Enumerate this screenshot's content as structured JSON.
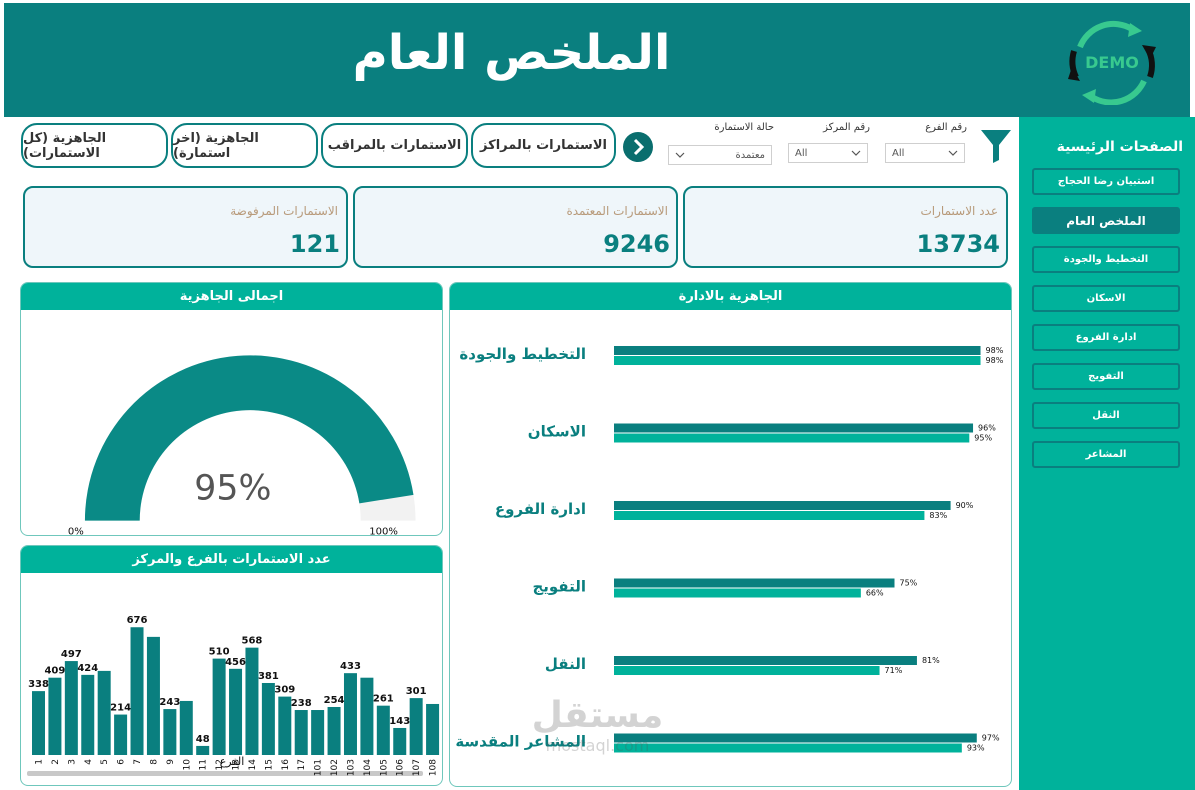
{
  "header": {
    "title": "الملخص العام",
    "logo_text": "DEMO"
  },
  "sidebar": {
    "title": "الصفحات الرئيسية",
    "items": [
      {
        "label": "استبيان رضا الحجاج",
        "active": false
      },
      {
        "label": "الملخص العام",
        "active": true
      },
      {
        "label": "التخطيط والجودة",
        "active": false
      },
      {
        "label": "الاسكان",
        "active": false
      },
      {
        "label": "ادارة الفروع",
        "active": false
      },
      {
        "label": "التفويج",
        "active": false
      },
      {
        "label": "النقل",
        "active": false
      },
      {
        "label": "المشاعر",
        "active": false
      }
    ]
  },
  "filters": {
    "branch": {
      "label": "رقم الفرع",
      "value": "All"
    },
    "center": {
      "label": "رقم المركز",
      "value": "All"
    },
    "status": {
      "label": "حالة الاستمارة",
      "value": "معتمدة"
    }
  },
  "nav_pills": [
    "الاستمارات بالمراكز",
    "الاستمارات بالمراقب",
    "الجاهزية (اخر استمارة)",
    "الجاهزية (كل الاستمارات)"
  ],
  "kpis": [
    {
      "label": "عدد الاستمارات",
      "value": "13734"
    },
    {
      "label": "الاستمارات المعتمدة",
      "value": "9246"
    },
    {
      "label": "الاستمارات المرفوضة",
      "value": "121"
    }
  ],
  "gauge": {
    "title": "اجمالى الجاهزية",
    "value_label": "95%",
    "value": 0.95,
    "min_label": "0%",
    "max_label": "100%"
  },
  "dept_readiness": {
    "title": "الجاهزية بالادارة",
    "rows": [
      {
        "name": "التخطيط والجودة",
        "a": 98,
        "b": 98,
        "a_label": "98%",
        "b_label": "98%"
      },
      {
        "name": "الاسكان",
        "a": 96,
        "b": 95,
        "a_label": "96%",
        "b_label": "95%"
      },
      {
        "name": "ادارة الفروع",
        "a": 90,
        "b": 83,
        "a_label": "90%",
        "b_label": "83%"
      },
      {
        "name": "التفويج",
        "a": 75,
        "b": 66,
        "a_label": "75%",
        "b_label": "66%"
      },
      {
        "name": "النقل",
        "a": 81,
        "b": 71,
        "a_label": "81%",
        "b_label": "71%"
      },
      {
        "name": "المشاعر المقدسة",
        "a": 97,
        "b": 93,
        "a_label": "97%",
        "b_label": "93%"
      }
    ]
  },
  "colors": {
    "teal_dark": "#0a7f7f",
    "teal_light": "#00b29b",
    "gauge_bg": "#f2f2f2"
  },
  "watermark": {
    "text": "مستقل",
    "sub": "mostaql.com"
  },
  "chart_data": {
    "type": "bar",
    "title": "عدد الاستمارات بالفرع والمركز",
    "xlabel": "الفرع",
    "ylabel": "",
    "categories": [
      "1",
      "2",
      "3",
      "4",
      "5",
      "6",
      "7",
      "8",
      "9",
      "10",
      "11",
      "12",
      "13",
      "14",
      "15",
      "16",
      "17",
      "101",
      "102",
      "103",
      "104",
      "105",
      "106",
      "107",
      "108"
    ],
    "values": [
      338,
      409,
      497,
      424,
      null,
      214,
      676,
      null,
      243,
      null,
      48,
      510,
      456,
      568,
      381,
      309,
      238,
      null,
      254,
      433,
      null,
      261,
      143,
      301,
      null
    ],
    "estimated_values": [
      338,
      409,
      497,
      424,
      445,
      214,
      676,
      625,
      243,
      286,
      48,
      510,
      456,
      568,
      381,
      309,
      238,
      238,
      254,
      433,
      409,
      261,
      143,
      301,
      270
    ],
    "data_labels": [
      "338",
      "409",
      "497",
      "424",
      "",
      "214",
      "676",
      "",
      "243",
      "",
      "48",
      "510",
      "456",
      "568",
      "381",
      "309",
      "238",
      "",
      "254",
      "433",
      "",
      "261",
      "143",
      "301",
      ""
    ],
    "ylim": [
      0,
      720
    ]
  }
}
